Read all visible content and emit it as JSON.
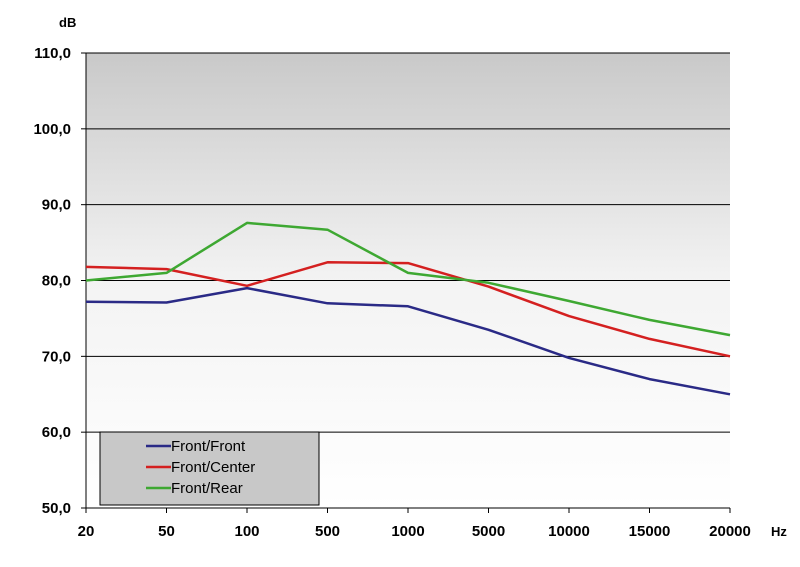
{
  "chart_data": {
    "type": "line",
    "title": "",
    "xlabel": "Hz",
    "ylabel": "dB",
    "categories": [
      "20",
      "50",
      "100",
      "500",
      "1000",
      "5000",
      "10000",
      "15000",
      "20000"
    ],
    "y_ticks": [
      "50,0",
      "60,0",
      "70,0",
      "80,0",
      "90,0",
      "100,0",
      "110,0"
    ],
    "ylim": [
      50,
      110
    ],
    "grid": "horizontal",
    "legend_position": "bottom-left",
    "series": [
      {
        "name": "Front/Front",
        "color": "#2a2a86",
        "values": [
          77.2,
          77.1,
          79.0,
          77.0,
          76.6,
          73.5,
          69.8,
          67.0,
          65.0
        ]
      },
      {
        "name": "Front/Center",
        "color": "#d42020",
        "values": [
          81.8,
          81.5,
          79.3,
          82.4,
          82.3,
          79.2,
          75.3,
          72.3,
          70.0
        ]
      },
      {
        "name": "Front/Rear",
        "color": "#3ea832",
        "values": [
          80.0,
          81.0,
          87.6,
          86.7,
          81.0,
          79.7,
          77.3,
          74.8,
          72.8
        ]
      }
    ]
  }
}
